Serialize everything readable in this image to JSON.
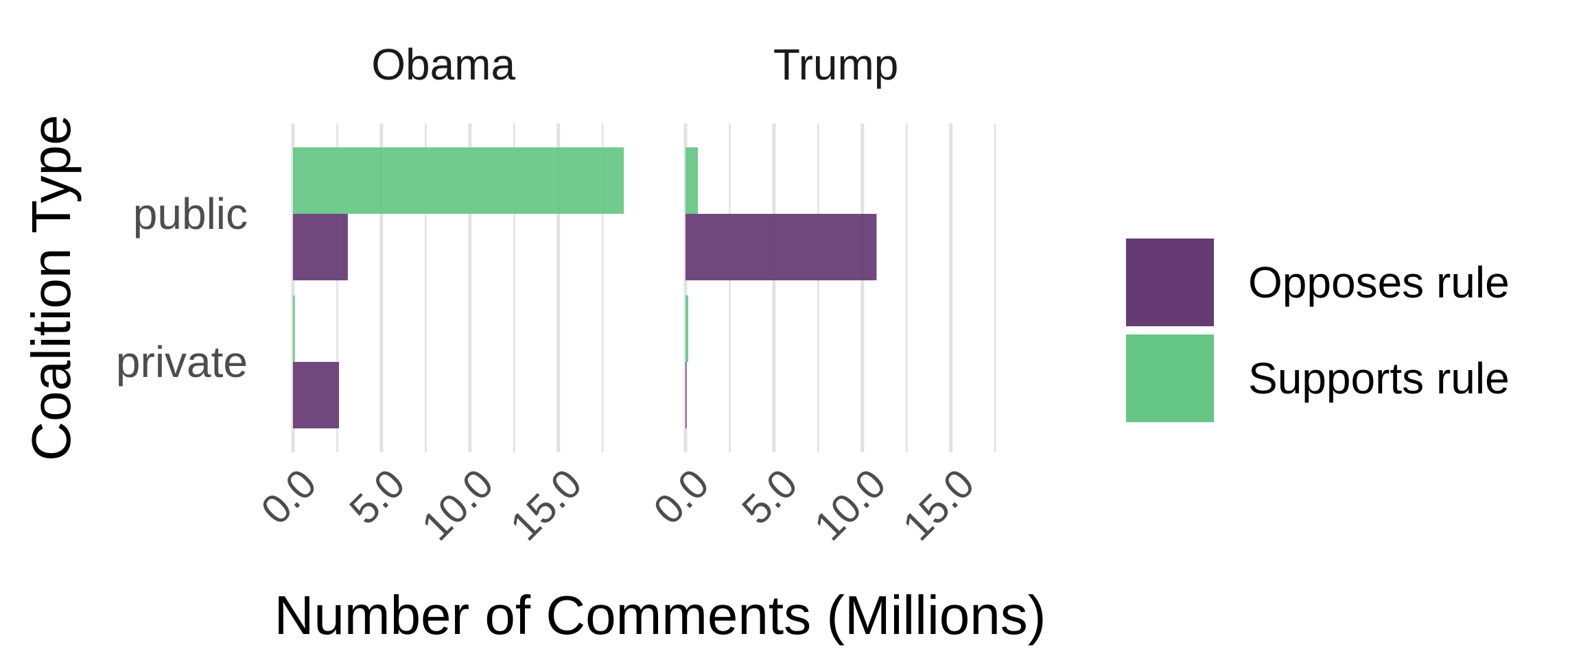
{
  "chart_data": {
    "type": "bar",
    "orientation": "horizontal",
    "xlabel": "Number of Comments (Millions)",
    "ylabel": "Coalition Type",
    "xlim": [
      -0.5,
      17.5
    ],
    "xticks": [
      0,
      2.5,
      5,
      7.5,
      10,
      12.5,
      15,
      17.5
    ],
    "xtick_labels": [
      "0.0",
      "5.0",
      "10.0",
      "15.0"
    ],
    "xtick_label_values": [
      0,
      5,
      10,
      15
    ],
    "categories": [
      "public",
      "private"
    ],
    "grid": true,
    "legend_placement": "right",
    "series_order": [
      "Opposes rule",
      "Supports rule"
    ],
    "colors": {
      "Opposes rule": "#663a73",
      "Supports rule": "#66c685"
    },
    "panels": [
      {
        "title": "Obama",
        "series": [
          {
            "name": "Opposes rule",
            "values": [
              3.1,
              2.6
            ]
          },
          {
            "name": "Supports rule",
            "values": [
              18.7,
              0.1
            ]
          }
        ]
      },
      {
        "title": "Trump",
        "series": [
          {
            "name": "Opposes rule",
            "values": [
              10.8,
              0.05
            ]
          },
          {
            "name": "Supports rule",
            "values": [
              0.7,
              0.15
            ]
          }
        ]
      }
    ]
  },
  "legend": {
    "items": [
      {
        "label": "Opposes rule",
        "color": "#663a73"
      },
      {
        "label": "Supports rule",
        "color": "#66c685"
      }
    ]
  }
}
